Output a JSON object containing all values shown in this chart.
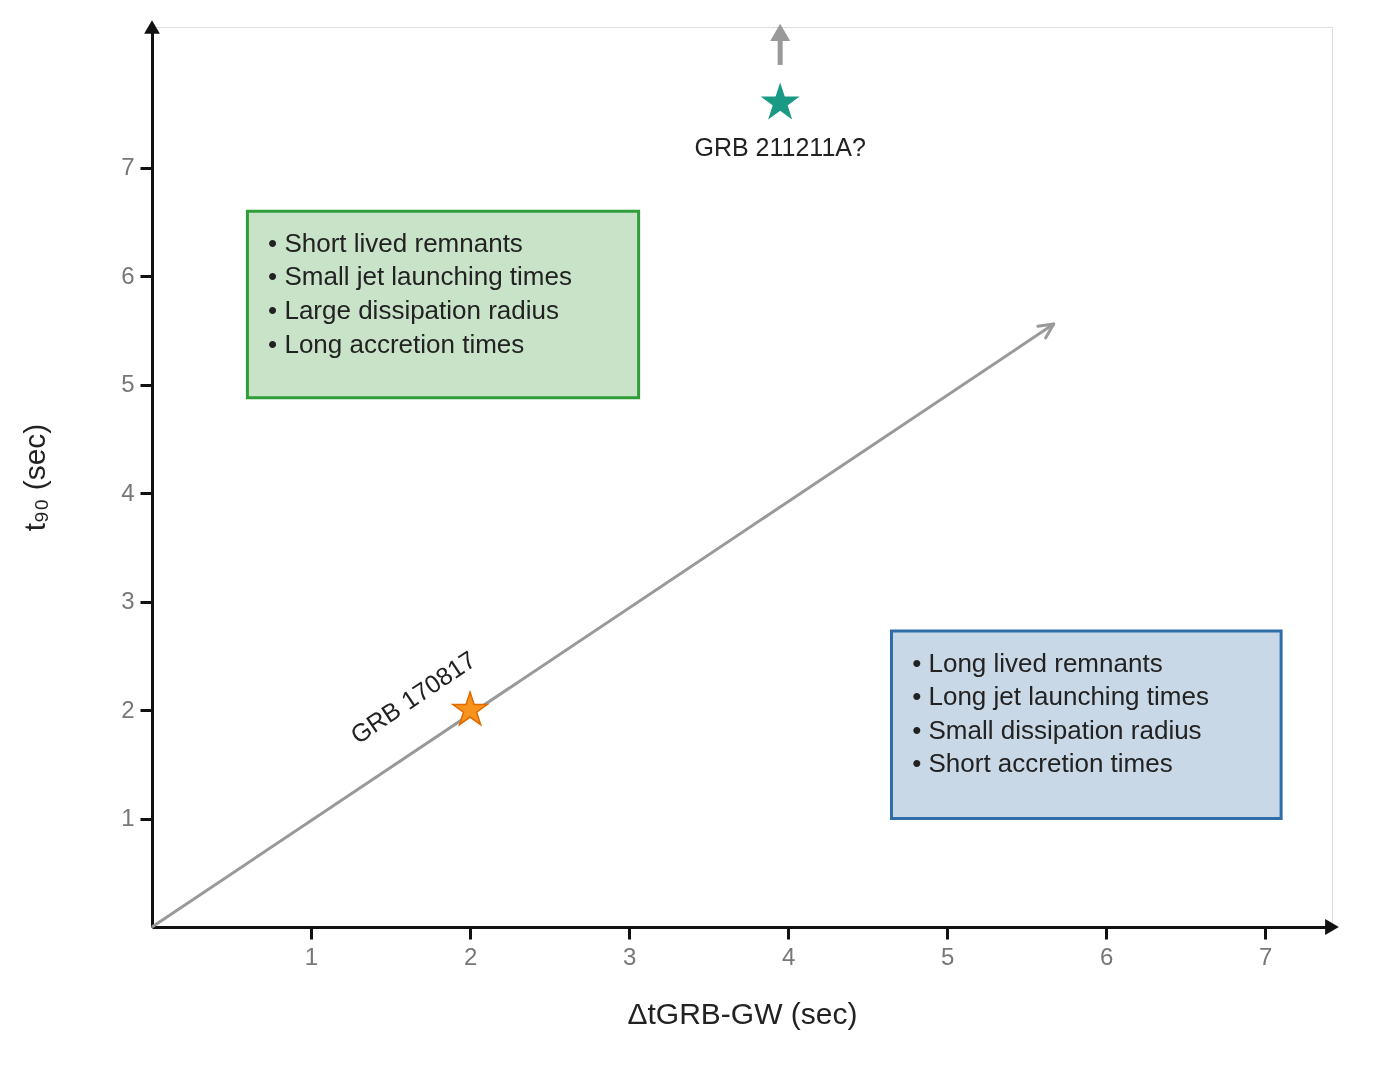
{
  "chart_data": {
    "type": "scatter",
    "xlabel": "ΔtGRB-GW (sec)",
    "ylabel": "t₉₀ (sec)",
    "xlim": [
      0,
      7.42
    ],
    "ylim": [
      0,
      8.3
    ],
    "xticks": [
      {
        "value": 1,
        "label": "1"
      },
      {
        "value": 2,
        "label": "2"
      },
      {
        "value": 3,
        "label": "3"
      },
      {
        "value": 4,
        "label": "4"
      },
      {
        "value": 5,
        "label": "5"
      },
      {
        "value": 6,
        "label": "6"
      },
      {
        "value": 7,
        "label": "7"
      }
    ],
    "yticks": [
      {
        "value": 1,
        "label": "1"
      },
      {
        "value": 2,
        "label": "2"
      },
      {
        "value": 3,
        "label": "3"
      },
      {
        "value": 4,
        "label": "4"
      },
      {
        "value": 5,
        "label": "5"
      },
      {
        "value": 6,
        "label": "6"
      },
      {
        "value": 7,
        "label": "7"
      }
    ],
    "grid": false,
    "marker": "star",
    "series": [
      {
        "type": "line",
        "marker": "none",
        "color": "#999999",
        "x": [
          0,
          5.67
        ],
        "values": [
          0,
          5.56
        ]
      },
      {
        "name": "GRB 170817",
        "color": "#f7941d",
        "x": [
          2
        ],
        "values": [
          2
        ]
      },
      {
        "name": "GRB 211211A?",
        "color": "#1a9a85",
        "x": [
          3.95
        ],
        "values": [
          7.6
        ]
      }
    ],
    "annotations": [
      "• Short lived remnants",
      "• Small jet launching times",
      "• Large dissipation radius",
      "• Long accretion times",
      "• Long lived remnants",
      "• Long jet launching times",
      "• Small dissipation radius",
      "• Short accretion times"
    ]
  }
}
